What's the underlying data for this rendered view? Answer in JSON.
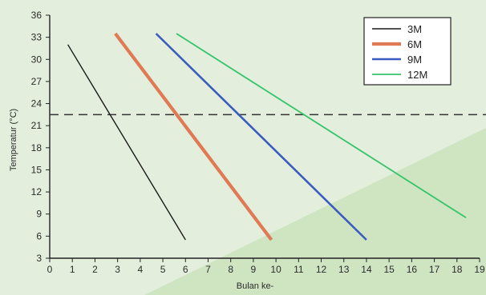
{
  "chart_data": {
    "type": "line",
    "xlabel": "Bulan ke-",
    "ylabel": "Temperatur (°C)",
    "xlim": [
      0,
      19
    ],
    "ylim": [
      3,
      36
    ],
    "x_ticks": [
      0,
      1,
      2,
      3,
      4,
      5,
      6,
      7,
      8,
      9,
      10,
      11,
      12,
      13,
      14,
      15,
      16,
      17,
      18,
      19
    ],
    "y_ticks": [
      3,
      6,
      9,
      12,
      15,
      18,
      21,
      24,
      27,
      30,
      33,
      36
    ],
    "reference_line": {
      "y": 22.5,
      "style": "dashed",
      "color": "#333333"
    },
    "legend_position": "top-right",
    "series": [
      {
        "name": "3M",
        "color": "#1a1a1a",
        "points": [
          [
            0.8,
            32
          ],
          [
            6.0,
            5.5
          ]
        ]
      },
      {
        "name": "6M",
        "color": "#e07a55",
        "points": [
          [
            2.9,
            33.5
          ],
          [
            9.8,
            5.5
          ]
        ]
      },
      {
        "name": "9M",
        "color": "#3a5bbf",
        "points": [
          [
            4.7,
            33.5
          ],
          [
            14.0,
            5.5
          ]
        ]
      },
      {
        "name": "12M",
        "color": "#33c46a",
        "points": [
          [
            5.6,
            33.5
          ],
          [
            18.4,
            8.5
          ]
        ]
      }
    ]
  }
}
